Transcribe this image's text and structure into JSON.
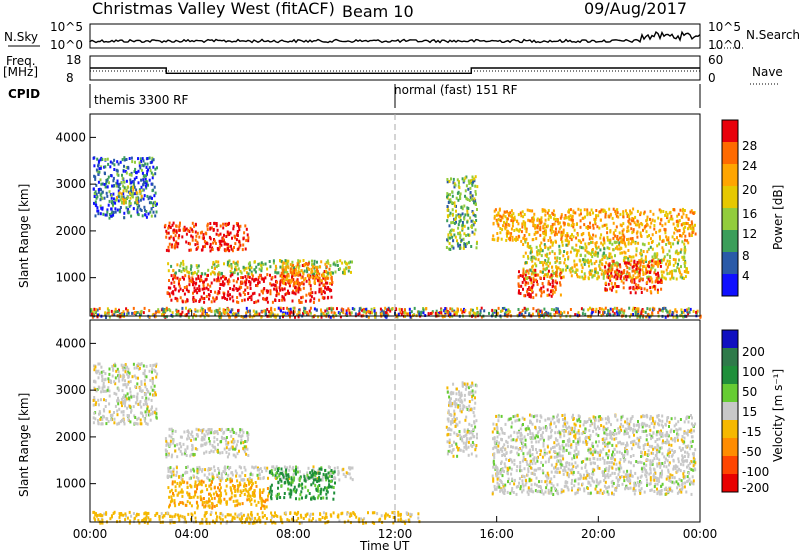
{
  "header": {
    "title": "Christmas Valley West (fitACF)",
    "beam": "Beam 10",
    "date": "09/Aug/2017"
  },
  "noise_panel": {
    "left_label": "N.Sky",
    "right_label": "N.Search",
    "left_ticks": [
      "10^5",
      "10^0"
    ],
    "right_ticks": [
      "10^5",
      "10^0"
    ]
  },
  "freq_panel": {
    "left_label_1": "Freq.",
    "left_label_2": "[MHz]",
    "right_label": "Nave",
    "left_ticks": [
      "18",
      "8"
    ],
    "right_ticks": [
      "60",
      "0"
    ]
  },
  "cpid_panel": {
    "label": "CPID",
    "modes": [
      "themis 3300 RF",
      "normal (fast) 151 RF"
    ]
  },
  "power_panel": {
    "ylabel": "Slant Range [km]",
    "colorbar_label": "Power [dB]",
    "colorbar_ticks": [
      "28",
      "24",
      "20",
      "16",
      "12",
      "8",
      "4"
    ],
    "colors": [
      "#e8000b",
      "#ff6a00",
      "#ffa500",
      "#e6c800",
      "#92cc3c",
      "#3b9e5a",
      "#2a5aa8",
      "#1010ff"
    ]
  },
  "velocity_panel": {
    "ylabel": "Slant Range [km]",
    "colorbar_label": "Velocity [m s⁻¹]",
    "colorbar_ticks": [
      "200",
      "100",
      "50",
      "15",
      "-15",
      "-50",
      "-100",
      "-200"
    ],
    "colors": [
      "#1010c0",
      "#2f7a4a",
      "#1f8f3a",
      "#66cc33",
      "#c8c8c8",
      "#f5b800",
      "#ff8c00",
      "#ff4500",
      "#e80000"
    ]
  },
  "chart_data": {
    "type": "heatmap",
    "x": [
      "00:00",
      "04:00",
      "08:00",
      "12:00",
      "16:00",
      "20:00",
      "00:00"
    ],
    "xlabel": "Time UT",
    "xlim_hours": [
      0,
      24
    ],
    "ylim_km": [
      180,
      4500
    ],
    "y_ticks": [
      1000,
      2000,
      3000,
      4000
    ],
    "cpid_switch_hour": 12,
    "freq_steps": [
      {
        "from": 0,
        "to": 3,
        "mhz": 13
      },
      {
        "from": 3,
        "to": 15,
        "mhz": 10.8
      },
      {
        "from": 15,
        "to": 24,
        "mhz": 13
      }
    ],
    "power_regions": [
      {
        "t0": 0.1,
        "t1": 2.6,
        "r0": 2300,
        "r1": 3600,
        "db": 8
      },
      {
        "t0": 1.0,
        "t1": 2.0,
        "r0": 2600,
        "r1": 3000,
        "db": 16
      },
      {
        "t0": 2.9,
        "t1": 6.2,
        "r0": 1600,
        "r1": 2200,
        "db": 27
      },
      {
        "t0": 3.0,
        "t1": 10.3,
        "r0": 1100,
        "r1": 1400,
        "db": 14
      },
      {
        "t0": 3.0,
        "t1": 9.5,
        "r0": 500,
        "r1": 1100,
        "db": 28
      },
      {
        "t0": 7.5,
        "t1": 9.5,
        "r0": 900,
        "r1": 1350,
        "db": 22
      },
      {
        "t0": 14.0,
        "t1": 15.2,
        "r0": 1600,
        "r1": 3200,
        "db": 12
      },
      {
        "t0": 15.8,
        "t1": 23.8,
        "r0": 1800,
        "r1": 2500,
        "db": 20
      },
      {
        "t0": 17.0,
        "t1": 23.5,
        "r0": 1000,
        "r1": 1800,
        "db": 16
      },
      {
        "t0": 16.8,
        "t1": 18.5,
        "r0": 600,
        "r1": 1200,
        "db": 26
      },
      {
        "t0": 20.2,
        "t1": 22.5,
        "r0": 700,
        "r1": 1400,
        "db": 25
      }
    ],
    "velocity_regions": [
      {
        "t0": 0.1,
        "t1": 2.6,
        "r0": 2300,
        "r1": 3600,
        "v": 0
      },
      {
        "t0": 2.9,
        "t1": 6.2,
        "r0": 1600,
        "r1": 2200,
        "v": 0
      },
      {
        "t0": 3.0,
        "t1": 10.3,
        "r0": 1100,
        "r1": 1400,
        "v": 0
      },
      {
        "t0": 3.0,
        "t1": 7.0,
        "r0": 500,
        "r1": 1100,
        "v": -40
      },
      {
        "t0": 7.0,
        "t1": 9.6,
        "r0": 700,
        "r1": 1350,
        "v": 40
      },
      {
        "t0": 0.0,
        "t1": 13.0,
        "r0": 180,
        "r1": 420,
        "v": -30
      },
      {
        "t0": 14.0,
        "t1": 15.2,
        "r0": 1600,
        "r1": 3200,
        "v": 0
      },
      {
        "t0": 15.8,
        "t1": 23.8,
        "r0": 800,
        "r1": 2500,
        "v": 0
      }
    ]
  }
}
